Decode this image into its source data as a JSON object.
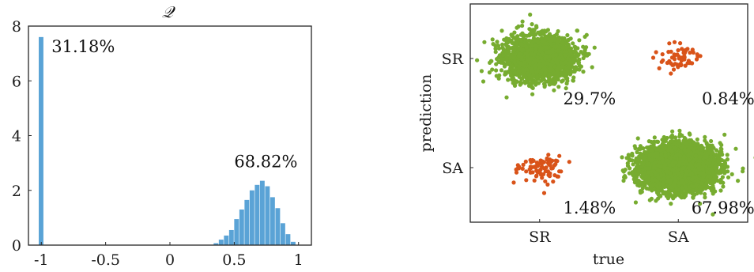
{
  "chart_data": [
    {
      "type": "histogram",
      "title": "𝒬",
      "xlabel": "",
      "ylabel": "",
      "xlim": [
        -1.1,
        1.1
      ],
      "ylim": [
        0,
        8
      ],
      "xticks": [
        "-1",
        "-0.5",
        "0",
        "0.5",
        "1"
      ],
      "yticks": [
        "0",
        "2",
        "4",
        "6",
        "8"
      ],
      "bin_width": 0.04,
      "color": "#5aa3d6",
      "bins": [
        {
          "x0": -1.02,
          "x1": -0.98,
          "value": 7.6
        },
        {
          "x0": 0.34,
          "x1": 0.38,
          "value": 0.07
        },
        {
          "x0": 0.38,
          "x1": 0.42,
          "value": 0.2
        },
        {
          "x0": 0.42,
          "x1": 0.46,
          "value": 0.35
        },
        {
          "x0": 0.46,
          "x1": 0.5,
          "value": 0.55
        },
        {
          "x0": 0.5,
          "x1": 0.54,
          "value": 0.95
        },
        {
          "x0": 0.54,
          "x1": 0.58,
          "value": 1.3
        },
        {
          "x0": 0.58,
          "x1": 0.62,
          "value": 1.65
        },
        {
          "x0": 0.62,
          "x1": 0.66,
          "value": 2.0
        },
        {
          "x0": 0.66,
          "x1": 0.7,
          "value": 2.2
        },
        {
          "x0": 0.7,
          "x1": 0.74,
          "value": 2.35
        },
        {
          "x0": 0.74,
          "x1": 0.78,
          "value": 2.15
        },
        {
          "x0": 0.78,
          "x1": 0.82,
          "value": 1.75
        },
        {
          "x0": 0.82,
          "x1": 0.86,
          "value": 1.35
        },
        {
          "x0": 0.86,
          "x1": 0.9,
          "value": 0.8
        },
        {
          "x0": 0.9,
          "x1": 0.94,
          "value": 0.4
        },
        {
          "x0": 0.94,
          "x1": 0.98,
          "value": 0.12
        }
      ],
      "annotations": [
        {
          "text": "31.18%",
          "x": -0.92,
          "y": 7.05
        },
        {
          "text": "68.82%",
          "x": 0.5,
          "y": 2.85
        }
      ]
    },
    {
      "type": "scatter",
      "title": "",
      "xlabel": "true",
      "ylabel": "prediction",
      "xcategories": [
        "SR",
        "SA"
      ],
      "ycategories": [
        "SR",
        "SA"
      ],
      "correct_color": "#77ac30",
      "incorrect_color": "#d95319",
      "clusters": [
        {
          "true": "SR",
          "prediction": "SR",
          "percent": "29.7%",
          "correct": true,
          "points": 2200,
          "spread_x": 0.12,
          "spread_y": 0.1
        },
        {
          "true": "SA",
          "prediction": "SR",
          "percent": "0.84%",
          "correct": false,
          "points": 60,
          "spread_x": 0.08,
          "spread_y": 0.065
        },
        {
          "true": "SR",
          "prediction": "SA",
          "percent": "1.48%",
          "correct": false,
          "points": 85,
          "spread_x": 0.09,
          "spread_y": 0.065
        },
        {
          "true": "SA",
          "prediction": "SA",
          "percent": "67.98%",
          "correct": true,
          "points": 4200,
          "spread_x": 0.13,
          "spread_y": 0.1
        }
      ]
    }
  ]
}
